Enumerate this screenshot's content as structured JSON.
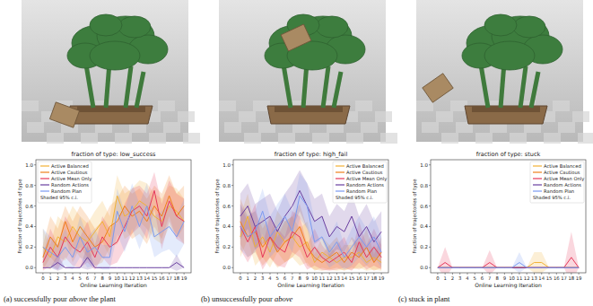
{
  "chart_data": [
    {
      "type": "line",
      "title": "fraction of type: low_success",
      "x_label": "Online Learning Iteration",
      "y_label": "Fraction of trajectories of type",
      "x": [
        0,
        1,
        2,
        3,
        4,
        5,
        6,
        7,
        8,
        9,
        10,
        11,
        12,
        13,
        14,
        15,
        16,
        17,
        18,
        19
      ],
      "xlim": [
        -0.95,
        19.95
      ],
      "xticks": [
        0,
        1,
        2,
        3,
        4,
        5,
        6,
        7,
        8,
        9,
        10,
        11,
        12,
        13,
        14,
        15,
        16,
        17,
        18,
        19
      ],
      "ylim": [
        -0.05,
        1.05
      ],
      "yticks": [
        {
          "value": 0,
          "label": "0.0"
        },
        {
          "value": 0.2,
          "label": "0.2"
        },
        {
          "value": 0.4,
          "label": "0.4"
        },
        {
          "value": 0.6,
          "label": "0.6"
        },
        {
          "value": 0.8,
          "label": "0.8"
        },
        {
          "value": 1,
          "label": "1.0"
        }
      ],
      "grid": false,
      "legend": "upper left",
      "annotations": [
        "Shaded 95% c.i."
      ],
      "caption": [
        "(a) successfully pour ",
        "above",
        " the plant"
      ],
      "series": [
        {
          "name": "Active Balanced",
          "color": "#f2b134",
          "values": [
            0.2,
            0.1,
            0.3,
            0.25,
            0.4,
            0.3,
            0.25,
            0.35,
            0.45,
            0.3,
            0.7,
            0.5,
            0.55,
            0.65,
            0.6,
            0.5,
            0.45,
            0.6,
            0.55,
            0.45
          ],
          "error": [
            0.18,
            0.12,
            0.2,
            0.18,
            0.2,
            0.2,
            0.18,
            0.2,
            0.2,
            0.2,
            0.2,
            0.22,
            0.22,
            0.2,
            0.22,
            0.22,
            0.22,
            0.2,
            0.22,
            0.22
          ]
        },
        {
          "name": "Active Cautious",
          "color": "#ef7f1a",
          "values": [
            0.1,
            0.3,
            0.2,
            0.45,
            0.25,
            0.4,
            0.3,
            0.2,
            0.25,
            0.4,
            0.45,
            0.6,
            0.5,
            0.55,
            0.45,
            0.6,
            0.5,
            0.7,
            0.5,
            0.6
          ],
          "error": [
            0.12,
            0.2,
            0.18,
            0.15,
            0.2,
            0.2,
            0.2,
            0.18,
            0.2,
            0.2,
            0.22,
            0.2,
            0.22,
            0.22,
            0.22,
            0.2,
            0.22,
            0.2,
            0.22,
            0.2
          ]
        },
        {
          "name": "Active Mean Only",
          "color": "#e6375a",
          "values": [
            0.05,
            0.2,
            0.1,
            0.3,
            0.2,
            0.15,
            0.25,
            0.1,
            0.3,
            0.2,
            0.25,
            0.4,
            0.55,
            0.6,
            0.5,
            0.75,
            0.4,
            0.65,
            0.5,
            0.45
          ],
          "error": [
            0.08,
            0.18,
            0.12,
            0.2,
            0.18,
            0.15,
            0.2,
            0.12,
            0.2,
            0.18,
            0.2,
            0.22,
            0.22,
            0.2,
            0.22,
            0.18,
            0.22,
            0.2,
            0.22,
            0.22
          ]
        },
        {
          "name": "Random Actions",
          "color": "#6a3fa0",
          "values": [
            0,
            0,
            0.05,
            0,
            0,
            0,
            0.1,
            0,
            0,
            0,
            0,
            0,
            0,
            0,
            0,
            0,
            0,
            0,
            0.05,
            0
          ],
          "error": [
            0,
            0,
            0.08,
            0,
            0,
            0,
            0.12,
            0,
            0,
            0,
            0,
            0,
            0,
            0,
            0,
            0,
            0,
            0,
            0.08,
            0
          ]
        },
        {
          "name": "Random Plan",
          "color": "#7a9af0",
          "values": [
            0.2,
            0.15,
            0.1,
            0.2,
            0.1,
            0.3,
            0.15,
            0.2,
            0.1,
            0.1,
            0.55,
            0.35,
            0.6,
            0.4,
            0.6,
            0.3,
            0.35,
            0.4,
            0.3,
            0.45
          ],
          "error": [
            0.18,
            0.15,
            0.12,
            0.18,
            0.12,
            0.2,
            0.15,
            0.18,
            0.12,
            0.12,
            0.22,
            0.2,
            0.22,
            0.22,
            0.22,
            0.2,
            0.2,
            0.22,
            0.2,
            0.22
          ]
        }
      ]
    },
    {
      "type": "line",
      "title": "fraction of type: high_fail",
      "x_label": "Online Learning Iteration",
      "y_label": "Fraction of trajectories of type",
      "x": [
        0,
        1,
        2,
        3,
        4,
        5,
        6,
        7,
        8,
        9,
        10,
        11,
        12,
        13,
        14,
        15,
        16,
        17,
        18,
        19
      ],
      "xlim": [
        -0.95,
        19.95
      ],
      "xticks": [
        0,
        1,
        2,
        3,
        4,
        5,
        6,
        7,
        8,
        9,
        10,
        11,
        12,
        13,
        14,
        15,
        16,
        17,
        18,
        19
      ],
      "ylim": [
        -0.05,
        1.05
      ],
      "yticks": [
        {
          "value": 0,
          "label": "0.0"
        },
        {
          "value": 0.2,
          "label": "0.2"
        },
        {
          "value": 0.4,
          "label": "0.4"
        },
        {
          "value": 0.6,
          "label": "0.6"
        },
        {
          "value": 0.8,
          "label": "0.8"
        },
        {
          "value": 1,
          "label": "1.0"
        }
      ],
      "grid": false,
      "legend": "upper right",
      "annotations": [
        "Shaded 95% c.i."
      ],
      "caption": [
        "(b) unsuccessfully pour ",
        "above"
      ],
      "series": [
        {
          "name": "Active Balanced",
          "color": "#f2b134",
          "values": [
            0.3,
            0.5,
            0.2,
            0.3,
            0.15,
            0.35,
            0.25,
            0.3,
            0.2,
            0.25,
            0.05,
            0.15,
            0.1,
            0.05,
            0.1,
            0.1,
            0.15,
            0.05,
            0.1,
            0.05
          ],
          "error": [
            0.2,
            0.22,
            0.18,
            0.2,
            0.15,
            0.2,
            0.2,
            0.2,
            0.18,
            0.2,
            0.08,
            0.15,
            0.12,
            0.08,
            0.12,
            0.12,
            0.15,
            0.08,
            0.12,
            0.08
          ]
        },
        {
          "name": "Active Cautious",
          "color": "#ef7f1a",
          "values": [
            0.45,
            0.3,
            0.35,
            0.2,
            0.3,
            0.15,
            0.25,
            0.3,
            0.4,
            0.2,
            0.1,
            0.05,
            0.1,
            0.15,
            0.05,
            0.15,
            0.1,
            0.2,
            0.05,
            0.15
          ],
          "error": [
            0.22,
            0.2,
            0.2,
            0.18,
            0.2,
            0.15,
            0.2,
            0.2,
            0.22,
            0.18,
            0.12,
            0.08,
            0.12,
            0.15,
            0.08,
            0.15,
            0.12,
            0.18,
            0.08,
            0.15
          ]
        },
        {
          "name": "Active Mean Only",
          "color": "#e6375a",
          "values": [
            0.4,
            0.25,
            0.4,
            0.1,
            0.3,
            0.2,
            0.15,
            0.35,
            0.3,
            0.1,
            0.2,
            0.1,
            0.05,
            0.1,
            0.15,
            0.05,
            0.25,
            0.1,
            0.2,
            0.1
          ],
          "error": [
            0.22,
            0.2,
            0.22,
            0.12,
            0.2,
            0.18,
            0.15,
            0.2,
            0.2,
            0.12,
            0.18,
            0.12,
            0.08,
            0.12,
            0.15,
            0.08,
            0.2,
            0.12,
            0.18,
            0.12
          ]
        },
        {
          "name": "Random Actions",
          "color": "#6a3fa0",
          "values": [
            0.5,
            0.6,
            0.4,
            0.45,
            0.5,
            0.35,
            0.5,
            0.6,
            0.75,
            0.6,
            0.45,
            0.5,
            0.3,
            0.4,
            0.35,
            0.5,
            0.3,
            0.4,
            0.25,
            0.35
          ],
          "error": [
            0.22,
            0.22,
            0.22,
            0.22,
            0.22,
            0.2,
            0.22,
            0.22,
            0.2,
            0.22,
            0.22,
            0.22,
            0.2,
            0.22,
            0.2,
            0.22,
            0.2,
            0.22,
            0.2,
            0.2
          ]
        },
        {
          "name": "Random Plan",
          "color": "#7a9af0",
          "values": [
            0.4,
            0.3,
            0.35,
            0.55,
            0.3,
            0.4,
            0.5,
            0.35,
            0.7,
            0.6,
            0.25,
            0.3,
            0.15,
            0.25,
            0.1,
            0.2,
            0.3,
            0.2,
            0.3,
            0.15
          ],
          "error": [
            0.22,
            0.2,
            0.2,
            0.22,
            0.2,
            0.22,
            0.22,
            0.2,
            0.22,
            0.22,
            0.2,
            0.2,
            0.15,
            0.2,
            0.12,
            0.18,
            0.2,
            0.18,
            0.2,
            0.15
          ]
        }
      ]
    },
    {
      "type": "line",
      "title": "fraction of type: stuck",
      "x_label": "Online Learning Iteration",
      "y_label": "Fraction of trajectories of type",
      "x": [
        0,
        1,
        2,
        3,
        4,
        5,
        6,
        7,
        8,
        9,
        10,
        11,
        12,
        13,
        14,
        15,
        16,
        17,
        18,
        19
      ],
      "xlim": [
        -0.95,
        19.95
      ],
      "xticks": [
        0,
        1,
        2,
        3,
        4,
        5,
        6,
        7,
        8,
        9,
        10,
        11,
        12,
        13,
        14,
        15,
        16,
        17,
        18,
        19
      ],
      "ylim": [
        -0.05,
        1.05
      ],
      "yticks": [
        {
          "value": 0,
          "label": "0.0"
        },
        {
          "value": 0.2,
          "label": "0.2"
        },
        {
          "value": 0.4,
          "label": "0.4"
        },
        {
          "value": 0.6,
          "label": "0.6"
        },
        {
          "value": 0.8,
          "label": "0.8"
        },
        {
          "value": 1,
          "label": "1.0"
        }
      ],
      "grid": false,
      "legend": "upper right",
      "annotations": [
        "Shaded 95% c.i."
      ],
      "caption": [
        "(c) stuck in plant"
      ],
      "series": [
        {
          "name": "Active Balanced",
          "color": "#f2b134",
          "values": [
            0,
            0,
            0,
            0,
            0,
            0,
            0,
            0,
            0,
            0,
            0,
            0,
            0,
            0.05,
            0.05,
            0,
            0,
            0,
            0,
            0
          ],
          "error": [
            0,
            0,
            0,
            0,
            0,
            0,
            0,
            0,
            0,
            0,
            0,
            0,
            0,
            0.1,
            0.1,
            0,
            0,
            0,
            0,
            0
          ]
        },
        {
          "name": "Active Cautious",
          "color": "#ef7f1a",
          "values": [
            0,
            0,
            0,
            0,
            0,
            0,
            0,
            0,
            0,
            0,
            0,
            0,
            0,
            0,
            0,
            0,
            0,
            0,
            0,
            0
          ],
          "error": [
            0,
            0,
            0,
            0,
            0,
            0,
            0,
            0,
            0,
            0,
            0,
            0,
            0,
            0,
            0,
            0,
            0,
            0,
            0,
            0
          ]
        },
        {
          "name": "Active Mean Only",
          "color": "#e6375a",
          "values": [
            0,
            0.05,
            0,
            0,
            0,
            0,
            0,
            0.05,
            0,
            0,
            0,
            0,
            0,
            0,
            0,
            0,
            0,
            0,
            0.1,
            0
          ],
          "error": [
            0,
            0.15,
            0,
            0,
            0,
            0,
            0,
            0.12,
            0,
            0,
            0,
            0,
            0,
            0,
            0,
            0,
            0,
            0,
            0.25,
            0
          ]
        },
        {
          "name": "Random Actions",
          "color": "#6a3fa0",
          "values": [
            0,
            0,
            0,
            0,
            0,
            0,
            0,
            0,
            0,
            0,
            0,
            0,
            0,
            0,
            0,
            0,
            0,
            0,
            0,
            0
          ],
          "error": [
            0,
            0,
            0,
            0,
            0,
            0,
            0,
            0,
            0,
            0,
            0,
            0,
            0,
            0,
            0,
            0,
            0,
            0,
            0,
            0
          ]
        },
        {
          "name": "Random Plan",
          "color": "#7a9af0",
          "values": [
            0,
            0,
            0,
            0,
            0,
            0,
            0,
            0,
            0,
            0,
            0,
            0.05,
            0,
            0,
            0,
            0,
            0,
            0,
            0,
            0
          ],
          "error": [
            0,
            0,
            0,
            0,
            0,
            0,
            0,
            0,
            0,
            0,
            0,
            0.1,
            0,
            0,
            0,
            0,
            0,
            0,
            0,
            0
          ]
        }
      ]
    }
  ]
}
